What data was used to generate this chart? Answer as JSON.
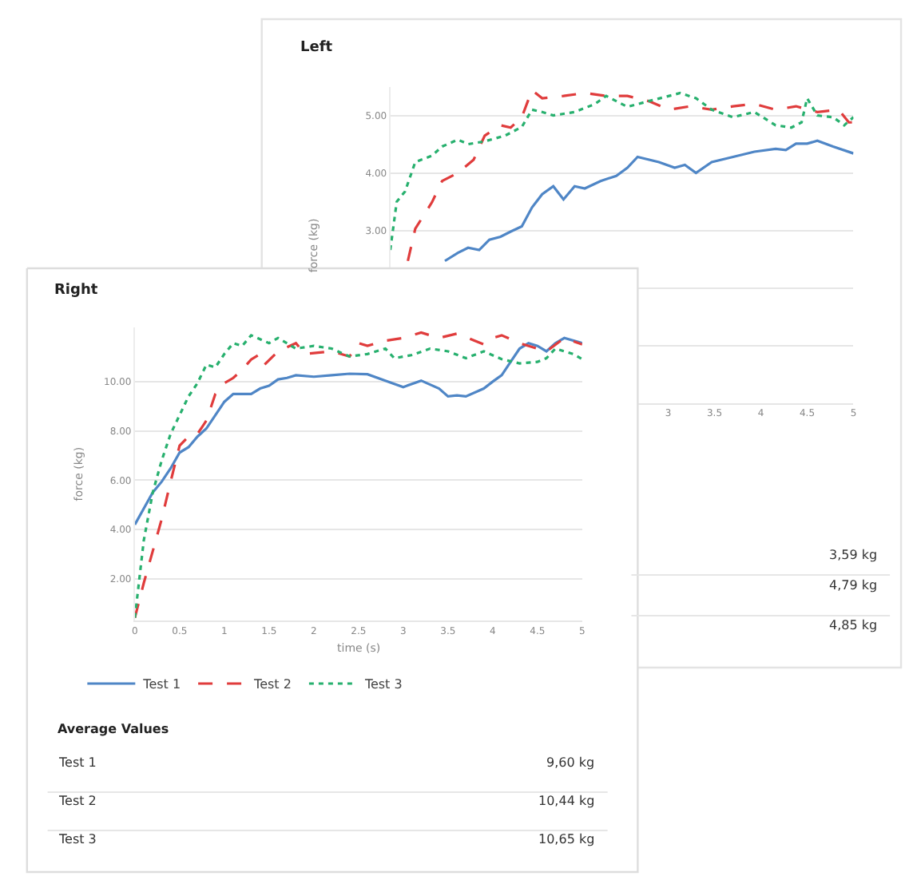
{
  "chart_data": [
    {
      "type": "line",
      "title": "Left",
      "ylabel": "force (kg)",
      "xlim": [
        0,
        5
      ],
      "ylim": [
        0,
        5.5
      ],
      "xticks": [
        3,
        3.5,
        4,
        4.5,
        5
      ],
      "yticks": [
        {
          "value": 1,
          "label": null
        },
        {
          "value": 2,
          "label": null
        },
        {
          "value": 3,
          "label": "3.00"
        },
        {
          "value": 4,
          "label": "4.00"
        },
        {
          "value": 5,
          "label": "5.00"
        }
      ],
      "grid": "y",
      "series": [
        {
          "color": "#4f86c6",
          "line_style": "solid",
          "x": [
            0.59,
            0.73,
            0.84,
            0.96,
            1.07,
            1.19,
            1.3,
            1.42,
            1.53,
            1.64,
            1.76,
            1.87,
            1.99,
            2.1,
            2.27,
            2.44,
            2.56,
            2.67,
            2.9,
            3.07,
            3.18,
            3.3,
            3.47,
            3.7,
            3.93,
            4.16,
            4.27,
            4.38,
            4.5,
            4.61,
            4.78,
            5.0
          ],
          "values": [
            2.47,
            2.61,
            2.7,
            2.66,
            2.84,
            2.89,
            2.98,
            3.07,
            3.4,
            3.63,
            3.77,
            3.54,
            3.77,
            3.73,
            3.86,
            3.95,
            4.09,
            4.28,
            4.19,
            4.09,
            4.14,
            4.0,
            4.19,
            4.28,
            4.37,
            4.42,
            4.4,
            4.51,
            4.51,
            4.56,
            4.46,
            4.34
          ]
        },
        {
          "color": "#e03c3c",
          "line_style": "dashed",
          "x": [
            0.19,
            0.27,
            0.45,
            0.56,
            0.73,
            0.9,
            1.02,
            1.19,
            1.3,
            1.42,
            1.53,
            1.64,
            1.87,
            2.1,
            2.33,
            2.56,
            2.79,
            3.01,
            3.24,
            3.47,
            3.7,
            3.93,
            4.16,
            4.38,
            4.61,
            4.84,
            4.95,
            5.0
          ],
          "values": [
            2.47,
            3.03,
            3.49,
            3.86,
            4.0,
            4.23,
            4.65,
            4.83,
            4.79,
            4.97,
            5.44,
            5.3,
            5.34,
            5.39,
            5.34,
            5.34,
            5.25,
            5.1,
            5.16,
            5.1,
            5.16,
            5.2,
            5.1,
            5.16,
            5.06,
            5.1,
            4.88,
            4.88
          ]
        },
        {
          "color": "#27b06e",
          "line_style": "dotted",
          "x": [
            0.0,
            0.07,
            0.16,
            0.27,
            0.45,
            0.56,
            0.73,
            0.84,
            1.02,
            1.24,
            1.42,
            1.53,
            1.64,
            1.76,
            1.99,
            2.21,
            2.33,
            2.56,
            2.79,
            3.01,
            3.13,
            3.3,
            3.47,
            3.7,
            3.93,
            4.16,
            4.33,
            4.44,
            4.5,
            4.61,
            4.78,
            4.9,
            5.0
          ],
          "values": [
            2.66,
            3.5,
            3.68,
            4.19,
            4.3,
            4.46,
            4.58,
            4.5,
            4.55,
            4.65,
            4.8,
            5.1,
            5.06,
            5.0,
            5.06,
            5.2,
            5.34,
            5.15,
            5.25,
            5.34,
            5.39,
            5.3,
            5.1,
            4.97,
            5.06,
            4.83,
            4.79,
            4.88,
            5.3,
            5.0,
            4.97,
            4.83,
            4.97
          ]
        }
      ]
    },
    {
      "type": "other",
      "categories": [
        null,
        null,
        null
      ],
      "value_labels": [
        "3,59 kg",
        "4,79 kg",
        "4,85 kg"
      ]
    },
    {
      "type": "line",
      "title": "Right",
      "xlabel": "time (s)",
      "ylabel": "force (kg)",
      "xlim": [
        0,
        5
      ],
      "ylim": [
        0.3,
        12.2
      ],
      "xticks": [
        0,
        0.5,
        1,
        1.5,
        2,
        2.5,
        3,
        3.5,
        4,
        4.5,
        5
      ],
      "yticks": [
        {
          "value": 2,
          "label": "2.00"
        },
        {
          "value": 4,
          "label": "4.00"
        },
        {
          "value": 6,
          "label": "6.00"
        },
        {
          "value": 8,
          "label": "8.00"
        },
        {
          "value": 10,
          "label": "10.00"
        }
      ],
      "grid": "y",
      "legend": "bottom",
      "series": [
        {
          "name": "Test 1",
          "color": "#4f86c6",
          "line_style": "solid",
          "x": [
            0,
            0.1,
            0.2,
            0.3,
            0.4,
            0.5,
            0.6,
            0.7,
            0.8,
            0.9,
            1.0,
            1.1,
            1.2,
            1.3,
            1.4,
            1.5,
            1.6,
            1.7,
            1.8,
            2.0,
            2.2,
            2.4,
            2.6,
            2.8,
            3.0,
            3.2,
            3.4,
            3.5,
            3.6,
            3.7,
            3.9,
            4.0,
            4.1,
            4.2,
            4.3,
            4.4,
            4.5,
            4.6,
            4.7,
            4.8,
            5.0
          ],
          "values": [
            4.2,
            4.85,
            5.5,
            5.94,
            6.48,
            7.12,
            7.34,
            7.77,
            8.1,
            8.64,
            9.18,
            9.5,
            9.5,
            9.5,
            9.72,
            9.83,
            10.09,
            10.15,
            10.26,
            10.2,
            10.26,
            10.32,
            10.3,
            10.04,
            9.78,
            10.04,
            9.72,
            9.4,
            9.44,
            9.4,
            9.72,
            10.0,
            10.26,
            10.8,
            11.34,
            11.56,
            11.45,
            11.23,
            11.56,
            11.77,
            11.56
          ]
        },
        {
          "name": "Test 2",
          "color": "#e03c3c",
          "line_style": "dashed",
          "x": [
            0,
            0.1,
            0.2,
            0.3,
            0.4,
            0.5,
            0.6,
            0.7,
            0.8,
            0.9,
            1.0,
            1.1,
            1.2,
            1.3,
            1.4,
            1.45,
            1.6,
            1.8,
            1.9,
            2.2,
            2.4,
            2.5,
            2.6,
            2.8,
            3.0,
            3.2,
            3.4,
            3.6,
            3.8,
            3.9,
            4.0,
            4.1,
            4.3,
            4.5,
            4.6,
            4.8,
            5.0
          ],
          "values": [
            0.42,
            1.83,
            3.12,
            4.42,
            5.94,
            7.4,
            7.77,
            7.88,
            8.42,
            9.5,
            9.94,
            10.15,
            10.48,
            10.9,
            11.12,
            10.69,
            11.23,
            11.56,
            11.12,
            11.23,
            11.02,
            11.56,
            11.45,
            11.66,
            11.77,
            11.99,
            11.77,
            11.95,
            11.66,
            11.51,
            11.77,
            11.88,
            11.56,
            11.34,
            11.23,
            11.77,
            11.51
          ]
        },
        {
          "name": "Test 3",
          "color": "#27b06e",
          "line_style": "dotted",
          "x": [
            0,
            0.1,
            0.2,
            0.3,
            0.4,
            0.5,
            0.6,
            0.7,
            0.8,
            0.9,
            1.0,
            1.1,
            1.2,
            1.3,
            1.5,
            1.6,
            1.8,
            2.0,
            2.2,
            2.4,
            2.6,
            2.8,
            2.9,
            3.1,
            3.3,
            3.5,
            3.7,
            3.9,
            4.1,
            4.3,
            4.5,
            4.6,
            4.7,
            4.9,
            5.0
          ],
          "values": [
            0.42,
            3.56,
            5.5,
            6.8,
            7.88,
            8.64,
            9.4,
            9.94,
            10.69,
            10.58,
            11.12,
            11.56,
            11.45,
            11.88,
            11.56,
            11.77,
            11.34,
            11.45,
            11.34,
            11.02,
            11.12,
            11.34,
            10.95,
            11.08,
            11.34,
            11.23,
            10.95,
            11.23,
            10.91,
            10.74,
            10.8,
            10.95,
            11.34,
            11.12,
            10.91
          ]
        }
      ]
    },
    {
      "type": "other",
      "title": "Average Values",
      "categories": [
        "Test 1",
        "Test 2",
        "Test 3"
      ],
      "value_labels": [
        "9,60 kg",
        "10,44 kg",
        "10,65 kg"
      ]
    }
  ]
}
